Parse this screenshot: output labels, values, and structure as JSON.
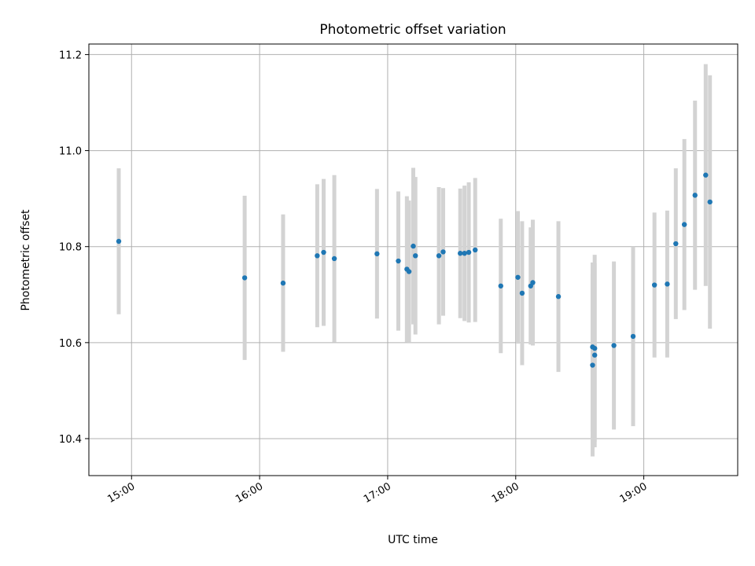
{
  "chart_data": {
    "type": "scatter",
    "title": "Photometric offset variation",
    "xlabel": "UTC time",
    "ylabel": "Photometric offset",
    "xlim": [
      "14:40",
      "19:44"
    ],
    "ylim": [
      10.323,
      11.222
    ],
    "x_ticks": [
      "15:00",
      "16:00",
      "17:00",
      "18:00",
      "19:00"
    ],
    "y_ticks": [
      "10.4",
      "10.6",
      "10.8",
      "11.0",
      "11.2"
    ],
    "grid": true,
    "legend": "none",
    "marker_color": "#1f77b4",
    "errorbar_color": "#d3d3d3",
    "points": [
      {
        "time": "14:54",
        "y": 10.811,
        "err": 0.152
      },
      {
        "time": "15:53",
        "y": 10.735,
        "err": 0.171
      },
      {
        "time": "16:11",
        "y": 10.724,
        "err": 0.143
      },
      {
        "time": "16:27",
        "y": 10.781,
        "err": 0.149
      },
      {
        "time": "16:30",
        "y": 10.788,
        "err": 0.153
      },
      {
        "time": "16:35",
        "y": 10.775,
        "err": 0.174
      },
      {
        "time": "16:55",
        "y": 10.785,
        "err": 0.135
      },
      {
        "time": "17:05",
        "y": 10.77,
        "err": 0.145
      },
      {
        "time": "17:09",
        "y": 10.753,
        "err": 0.152
      },
      {
        "time": "17:10",
        "y": 10.748,
        "err": 0.148
      },
      {
        "time": "17:12",
        "y": 10.801,
        "err": 0.163
      },
      {
        "time": "17:13",
        "y": 10.781,
        "err": 0.164
      },
      {
        "time": "17:24",
        "y": 10.781,
        "err": 0.143
      },
      {
        "time": "17:26",
        "y": 10.789,
        "err": 0.133
      },
      {
        "time": "17:34",
        "y": 10.786,
        "err": 0.135
      },
      {
        "time": "17:36",
        "y": 10.786,
        "err": 0.141
      },
      {
        "time": "17:38",
        "y": 10.788,
        "err": 0.146
      },
      {
        "time": "17:41",
        "y": 10.793,
        "err": 0.15
      },
      {
        "time": "17:53",
        "y": 10.718,
        "err": 0.14
      },
      {
        "time": "18:01",
        "y": 10.736,
        "err": 0.138
      },
      {
        "time": "18:03",
        "y": 10.703,
        "err": 0.15
      },
      {
        "time": "18:07",
        "y": 10.718,
        "err": 0.122
      },
      {
        "time": "18:08",
        "y": 10.725,
        "err": 0.131
      },
      {
        "time": "18:20",
        "y": 10.696,
        "err": 0.157
      },
      {
        "time": "18:36",
        "y": 10.553,
        "err": 0.19
      },
      {
        "time": "18:36",
        "y": 10.591,
        "err": 0.176
      },
      {
        "time": "18:37",
        "y": 10.574,
        "err": 0.192
      },
      {
        "time": "18:37",
        "y": 10.588,
        "err": 0.195
      },
      {
        "time": "18:46",
        "y": 10.594,
        "err": 0.175
      },
      {
        "time": "18:55",
        "y": 10.613,
        "err": 0.187
      },
      {
        "time": "19:05",
        "y": 10.72,
        "err": 0.151
      },
      {
        "time": "19:11",
        "y": 10.722,
        "err": 0.153
      },
      {
        "time": "19:15",
        "y": 10.806,
        "err": 0.157
      },
      {
        "time": "19:19",
        "y": 10.846,
        "err": 0.178
      },
      {
        "time": "19:24",
        "y": 10.907,
        "err": 0.197
      },
      {
        "time": "19:29",
        "y": 10.949,
        "err": 0.231
      },
      {
        "time": "19:31",
        "y": 10.893,
        "err": 0.264
      }
    ]
  }
}
